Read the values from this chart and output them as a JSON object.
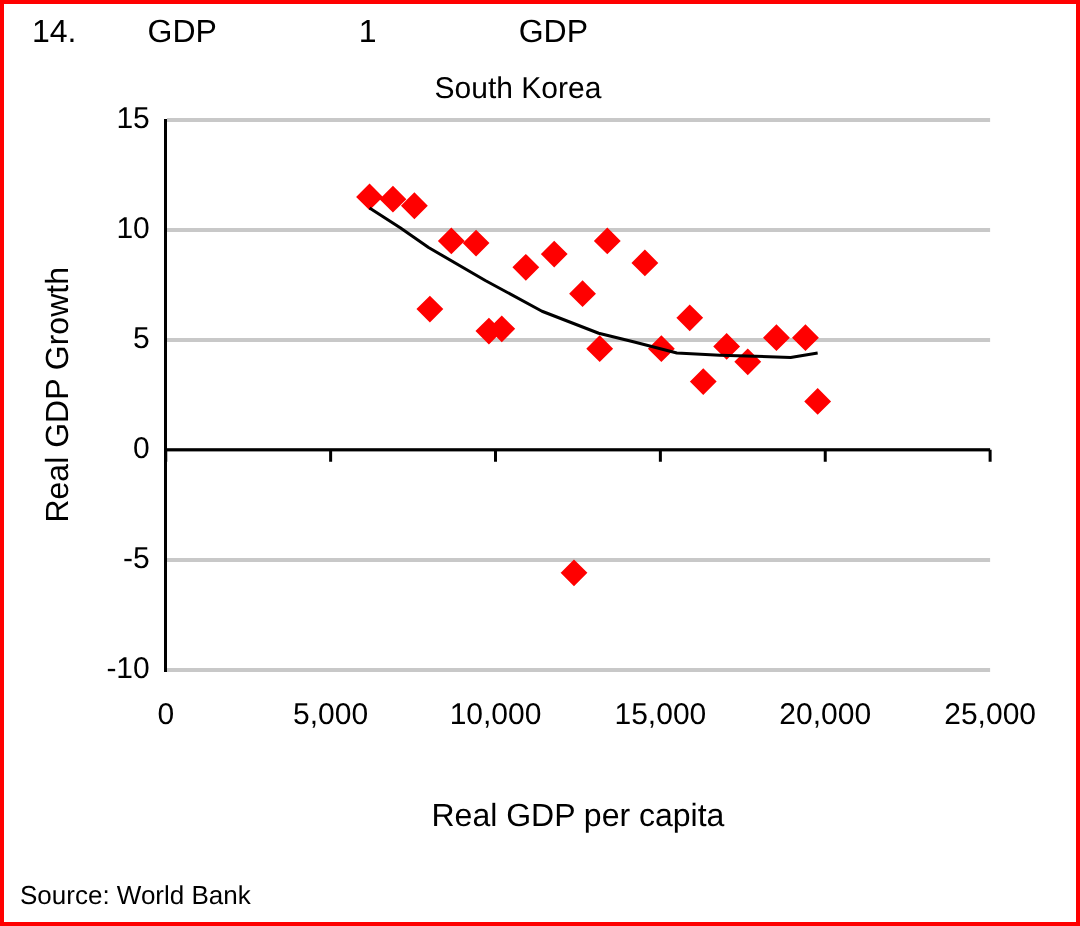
{
  "chart_data": {
    "type": "scatter",
    "title": "14.        GDP                1                GDP",
    "subtitle": "South Korea",
    "xlabel": "Real GDP per capita",
    "ylabel": "Real GDP Growth",
    "series": [
      {
        "color": "#ff0000",
        "marker": "diamond",
        "x": [
          6180,
          6890,
          7540,
          8010,
          8660,
          9410,
          9800,
          10190,
          10920,
          11780,
          12380,
          12640,
          13160,
          13390,
          14530,
          15030,
          15890,
          16300,
          17010,
          17650,
          18520,
          19400,
          19770
        ],
        "values": [
          11.5,
          11.4,
          11.1,
          6.4,
          9.5,
          9.4,
          5.4,
          5.5,
          8.3,
          8.9,
          -5.6,
          7.1,
          4.6,
          9.5,
          8.5,
          4.6,
          6.0,
          3.1,
          4.7,
          4.0,
          5.1,
          5.1,
          2.2
        ]
      },
      {
        "type": "line",
        "color": "#000000",
        "marker": "none",
        "x": [
          6180,
          7110,
          7970,
          9690,
          11410,
          13130,
          14210,
          15500,
          16800,
          18950,
          19770
        ],
        "values": [
          11.0,
          10.1,
          9.2,
          7.7,
          6.3,
          5.3,
          4.9,
          4.4,
          4.3,
          4.2,
          4.4
        ]
      }
    ],
    "xlim": [
      0,
      25000
    ],
    "xticks": [
      {
        "value": 0,
        "label": "0"
      },
      {
        "value": 5000,
        "label": "5,000"
      },
      {
        "value": 10000,
        "label": "10,000"
      },
      {
        "value": 15000,
        "label": "15,000"
      },
      {
        "value": 20000,
        "label": "20,000"
      },
      {
        "value": 25000,
        "label": "25,000"
      }
    ],
    "ylim": [
      -10,
      15
    ],
    "yticks": [
      -10,
      -5,
      0,
      5,
      10,
      15
    ],
    "grid": "y",
    "legend": false,
    "annotations": [
      "Source: World Bank"
    ]
  }
}
